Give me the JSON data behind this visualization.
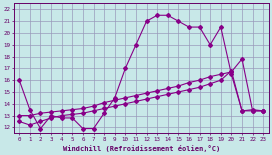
{
  "background_color": "#c8e8e8",
  "grid_color": "#9999bb",
  "line_color": "#880088",
  "xlabel": "Windchill (Refroidissement éolien,°C)",
  "xlim": [
    -0.5,
    23.5
  ],
  "ylim": [
    11.5,
    22.5
  ],
  "yticks": [
    12,
    13,
    14,
    15,
    16,
    17,
    18,
    19,
    20,
    21,
    22
  ],
  "xticks": [
    0,
    1,
    2,
    3,
    4,
    5,
    6,
    7,
    8,
    9,
    10,
    11,
    12,
    13,
    14,
    15,
    16,
    17,
    18,
    19,
    20,
    21,
    22,
    23
  ],
  "line1_x": [
    0,
    1,
    2,
    3,
    4,
    5,
    6,
    7,
    8,
    9,
    10,
    11,
    12,
    13,
    14,
    15,
    16,
    17,
    18,
    19,
    20,
    21,
    22,
    23
  ],
  "line1_y": [
    16.0,
    13.5,
    11.9,
    13.0,
    12.8,
    12.8,
    11.9,
    11.9,
    13.2,
    14.5,
    17.0,
    19.0,
    21.0,
    21.5,
    21.5,
    21.0,
    20.5,
    20.5,
    19.0,
    20.5,
    16.5,
    13.4,
    13.5,
    13.4
  ],
  "line2_x": [
    0,
    1,
    2,
    3,
    4,
    5,
    6,
    7,
    8,
    9,
    10,
    11,
    12,
    13,
    14,
    15,
    16,
    17,
    18,
    19,
    20,
    21,
    22,
    23
  ],
  "line2_y": [
    13.0,
    13.0,
    13.2,
    13.3,
    13.4,
    13.5,
    13.6,
    13.8,
    14.1,
    14.3,
    14.5,
    14.7,
    14.9,
    15.1,
    15.3,
    15.5,
    15.8,
    16.0,
    16.3,
    16.5,
    16.7,
    17.8,
    13.4,
    13.4
  ],
  "line3_x": [
    0,
    1,
    2,
    3,
    4,
    5,
    6,
    7,
    8,
    9,
    10,
    11,
    12,
    13,
    14,
    15,
    16,
    17,
    18,
    19,
    20,
    21,
    22,
    23
  ],
  "line3_y": [
    12.5,
    12.2,
    12.5,
    12.8,
    13.0,
    13.1,
    13.2,
    13.4,
    13.6,
    13.8,
    14.0,
    14.2,
    14.4,
    14.6,
    14.8,
    15.0,
    15.2,
    15.4,
    15.7,
    16.0,
    16.8,
    13.4,
    13.4,
    13.4
  ]
}
